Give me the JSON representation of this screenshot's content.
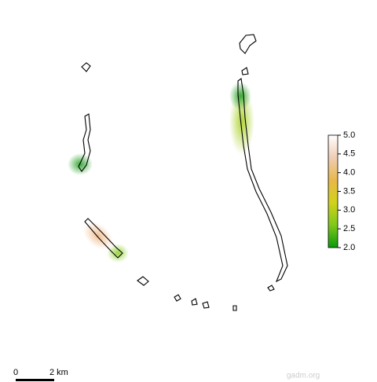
{
  "legend": {
    "lim": [
      2,
      5
    ],
    "ticks": [
      {
        "value": 5,
        "label": "5.0"
      },
      {
        "value": 4.5,
        "label": "4.5"
      },
      {
        "value": 4,
        "label": "4.0"
      },
      {
        "value": 3.5,
        "label": "3.5"
      },
      {
        "value": 3,
        "label": "3.0"
      },
      {
        "value": 2.5,
        "label": "2.5"
      },
      {
        "value": 2,
        "label": "2.0"
      }
    ],
    "colors": [
      "#0a9a0a",
      "#7ec81a",
      "#d2d21a",
      "#e8b84a",
      "#f0cdb4",
      "#ffffff"
    ]
  },
  "scale_bar": {
    "start": "0",
    "end": "2 km"
  },
  "source": "gadm.org"
}
